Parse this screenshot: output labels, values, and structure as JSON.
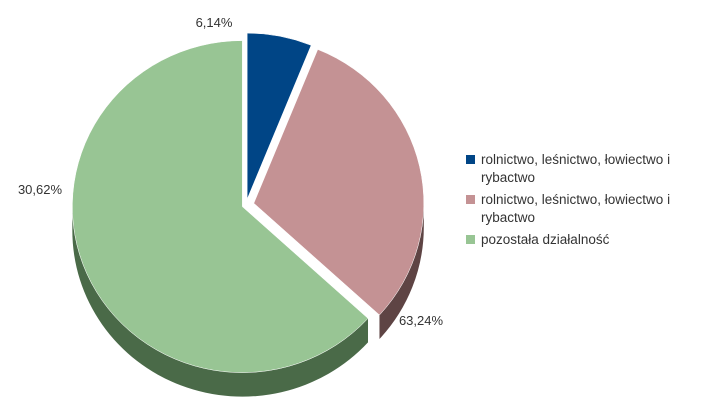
{
  "chart_data": {
    "type": "pie",
    "title": "",
    "start_angle_deg": 0,
    "slices": [
      {
        "label": "rolnictwo, leśnictwo, łowiectwo i rybactwo",
        "value": 6.14,
        "display": "6,14%",
        "color": "#004586",
        "side_color": "#002a52"
      },
      {
        "label": "rolnictwo, leśnictwo, łowiectwo i rybactwo",
        "value": 30.62,
        "display": "30,62%",
        "color": "#c49294",
        "side_color": "#5e4444"
      },
      {
        "label": "pozostała działalność",
        "value": 63.24,
        "display": "63,24%",
        "color": "#98c594",
        "side_color": "#4a6a48"
      }
    ],
    "legend_position": "right"
  }
}
